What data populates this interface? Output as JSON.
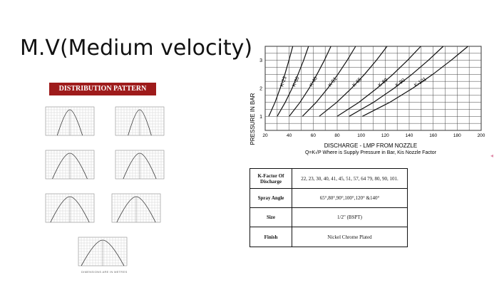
{
  "page": {
    "title": "M.V(Medium velocity)"
  },
  "distribution": {
    "title": "DISTRIBUTION PATTERN",
    "footer": "DIMENSIONS ARE IN METRES"
  },
  "chart_data": {
    "type": "line",
    "title": "",
    "xlabel": "DISCHARGE - LMP FROM NOZZLE",
    "ylabel": "PRESSURE IN BAR",
    "formula": "Q=K√P  Where is Supply Pressure in Bar, Kis Nozzle Factor",
    "xlim": [
      20,
      200
    ],
    "ylim": [
      0.5,
      3.5
    ],
    "xticks": [
      20,
      40,
      60,
      80,
      100,
      120,
      140,
      160,
      180,
      200
    ],
    "yticks": [
      1,
      2,
      3
    ],
    "grid": true,
    "legend": "none",
    "series": [
      {
        "name": "K-23",
        "k": 23,
        "x": [
          23.0,
          28.2,
          32.5,
          36.4,
          39.8,
          43.0
        ],
        "y": [
          1.0,
          1.5,
          2.0,
          2.5,
          3.0,
          3.5
        ]
      },
      {
        "name": "K-30",
        "k": 30,
        "x": [
          30.0,
          36.7,
          42.4,
          47.4,
          52.0,
          56.1
        ],
        "y": [
          1.0,
          1.5,
          2.0,
          2.5,
          3.0,
          3.5
        ]
      },
      {
        "name": "K-40",
        "k": 40,
        "x": [
          40.0,
          49.0,
          56.6,
          63.2,
          69.3,
          74.8
        ],
        "y": [
          1.0,
          1.5,
          2.0,
          2.5,
          3.0,
          3.5
        ]
      },
      {
        "name": "K-51",
        "k": 51,
        "x": [
          51.0,
          62.5,
          72.1,
          80.6,
          88.3,
          95.4
        ],
        "y": [
          1.0,
          1.5,
          2.0,
          2.5,
          3.0,
          3.5
        ]
      },
      {
        "name": "K-65",
        "k": 65,
        "x": [
          65.0,
          79.6,
          91.9,
          102.8,
          112.6,
          121.6
        ],
        "y": [
          1.0,
          1.5,
          2.0,
          2.5,
          3.0,
          3.5
        ]
      },
      {
        "name": "K-80",
        "k": 80,
        "x": [
          80.0,
          98.0,
          113.1,
          126.5,
          138.6,
          149.7
        ],
        "y": [
          1.0,
          1.5,
          2.0,
          2.5,
          3.0,
          3.5
        ]
      },
      {
        "name": "K-90",
        "k": 90,
        "x": [
          90.0,
          110.2,
          127.3,
          142.3,
          155.9,
          168.4
        ],
        "y": [
          1.0,
          1.5,
          2.0,
          2.5,
          3.0,
          3.5
        ]
      },
      {
        "name": "K-101",
        "k": 101,
        "x": [
          101.0,
          123.7,
          142.8,
          159.7,
          174.9,
          189.0
        ],
        "y": [
          1.0,
          1.5,
          2.0,
          2.5,
          3.0,
          3.5
        ]
      }
    ]
  },
  "specs": {
    "rows": [
      {
        "label": "K-Factor Of Discharge",
        "value": "22, 23, 30, 40, 41, 45, 51, 57, 64 79, 80, 90, 101."
      },
      {
        "label": "Spray Angle",
        "value": "65°,80°,90°,100°,120° &140°"
      },
      {
        "label": "Size",
        "value": "1/2\" (BSPT)"
      },
      {
        "label": "Finish",
        "value": "Nickel Chrome Plated"
      }
    ]
  }
}
